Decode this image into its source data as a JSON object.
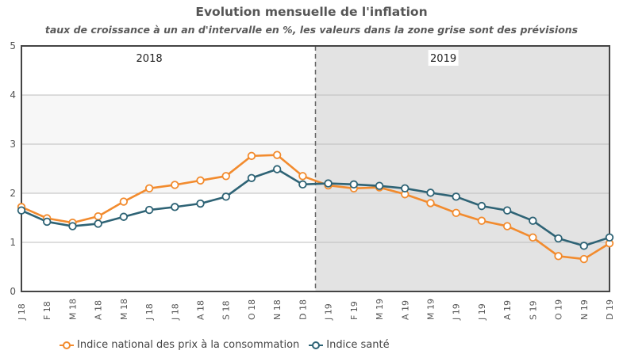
{
  "chart_data": {
    "type": "line",
    "title": "Evolution mensuelle de l'inflation",
    "subtitle": "taux de croissance à un an d'intervalle en %, les valeurs dans la zone grise sont des prévisions",
    "categories": [
      "J 18",
      "F 18",
      "M 18",
      "A 18",
      "M 18",
      "J 18",
      "J 18",
      "A 18",
      "S 18",
      "O 18",
      "N 18",
      "D 18",
      "J 19",
      "F 19",
      "M 19",
      "A 19",
      "M 19",
      "J 19",
      "J 19",
      "A 19",
      "S 19",
      "O 19",
      "N 19",
      "D 19"
    ],
    "ylim": [
      0,
      5
    ],
    "yticks": [
      "0",
      "1",
      "2",
      "3",
      "4",
      "5"
    ],
    "xlabel": "",
    "ylabel": "",
    "forecast_start_index": 11.5,
    "periods": [
      {
        "label": "2018",
        "at_index": 5
      },
      {
        "label": "2019",
        "at_index": 16.5
      }
    ],
    "series": [
      {
        "name": "Indice national des prix à la consommation",
        "color": "#f28b2e",
        "values": [
          1.72,
          1.49,
          1.4,
          1.53,
          1.83,
          2.1,
          2.17,
          2.26,
          2.35,
          2.76,
          2.78,
          2.35,
          2.16,
          2.1,
          2.12,
          1.98,
          1.8,
          1.6,
          1.44,
          1.33,
          1.1,
          0.72,
          0.66,
          0.98
        ]
      },
      {
        "name": "Indice santé",
        "color": "#2e6375",
        "values": [
          1.65,
          1.42,
          1.33,
          1.38,
          1.52,
          1.66,
          1.72,
          1.79,
          1.93,
          2.31,
          2.49,
          2.18,
          2.2,
          2.18,
          2.15,
          2.1,
          2.01,
          1.93,
          1.74,
          1.65,
          1.44,
          1.08,
          0.93,
          1.1
        ]
      }
    ]
  }
}
